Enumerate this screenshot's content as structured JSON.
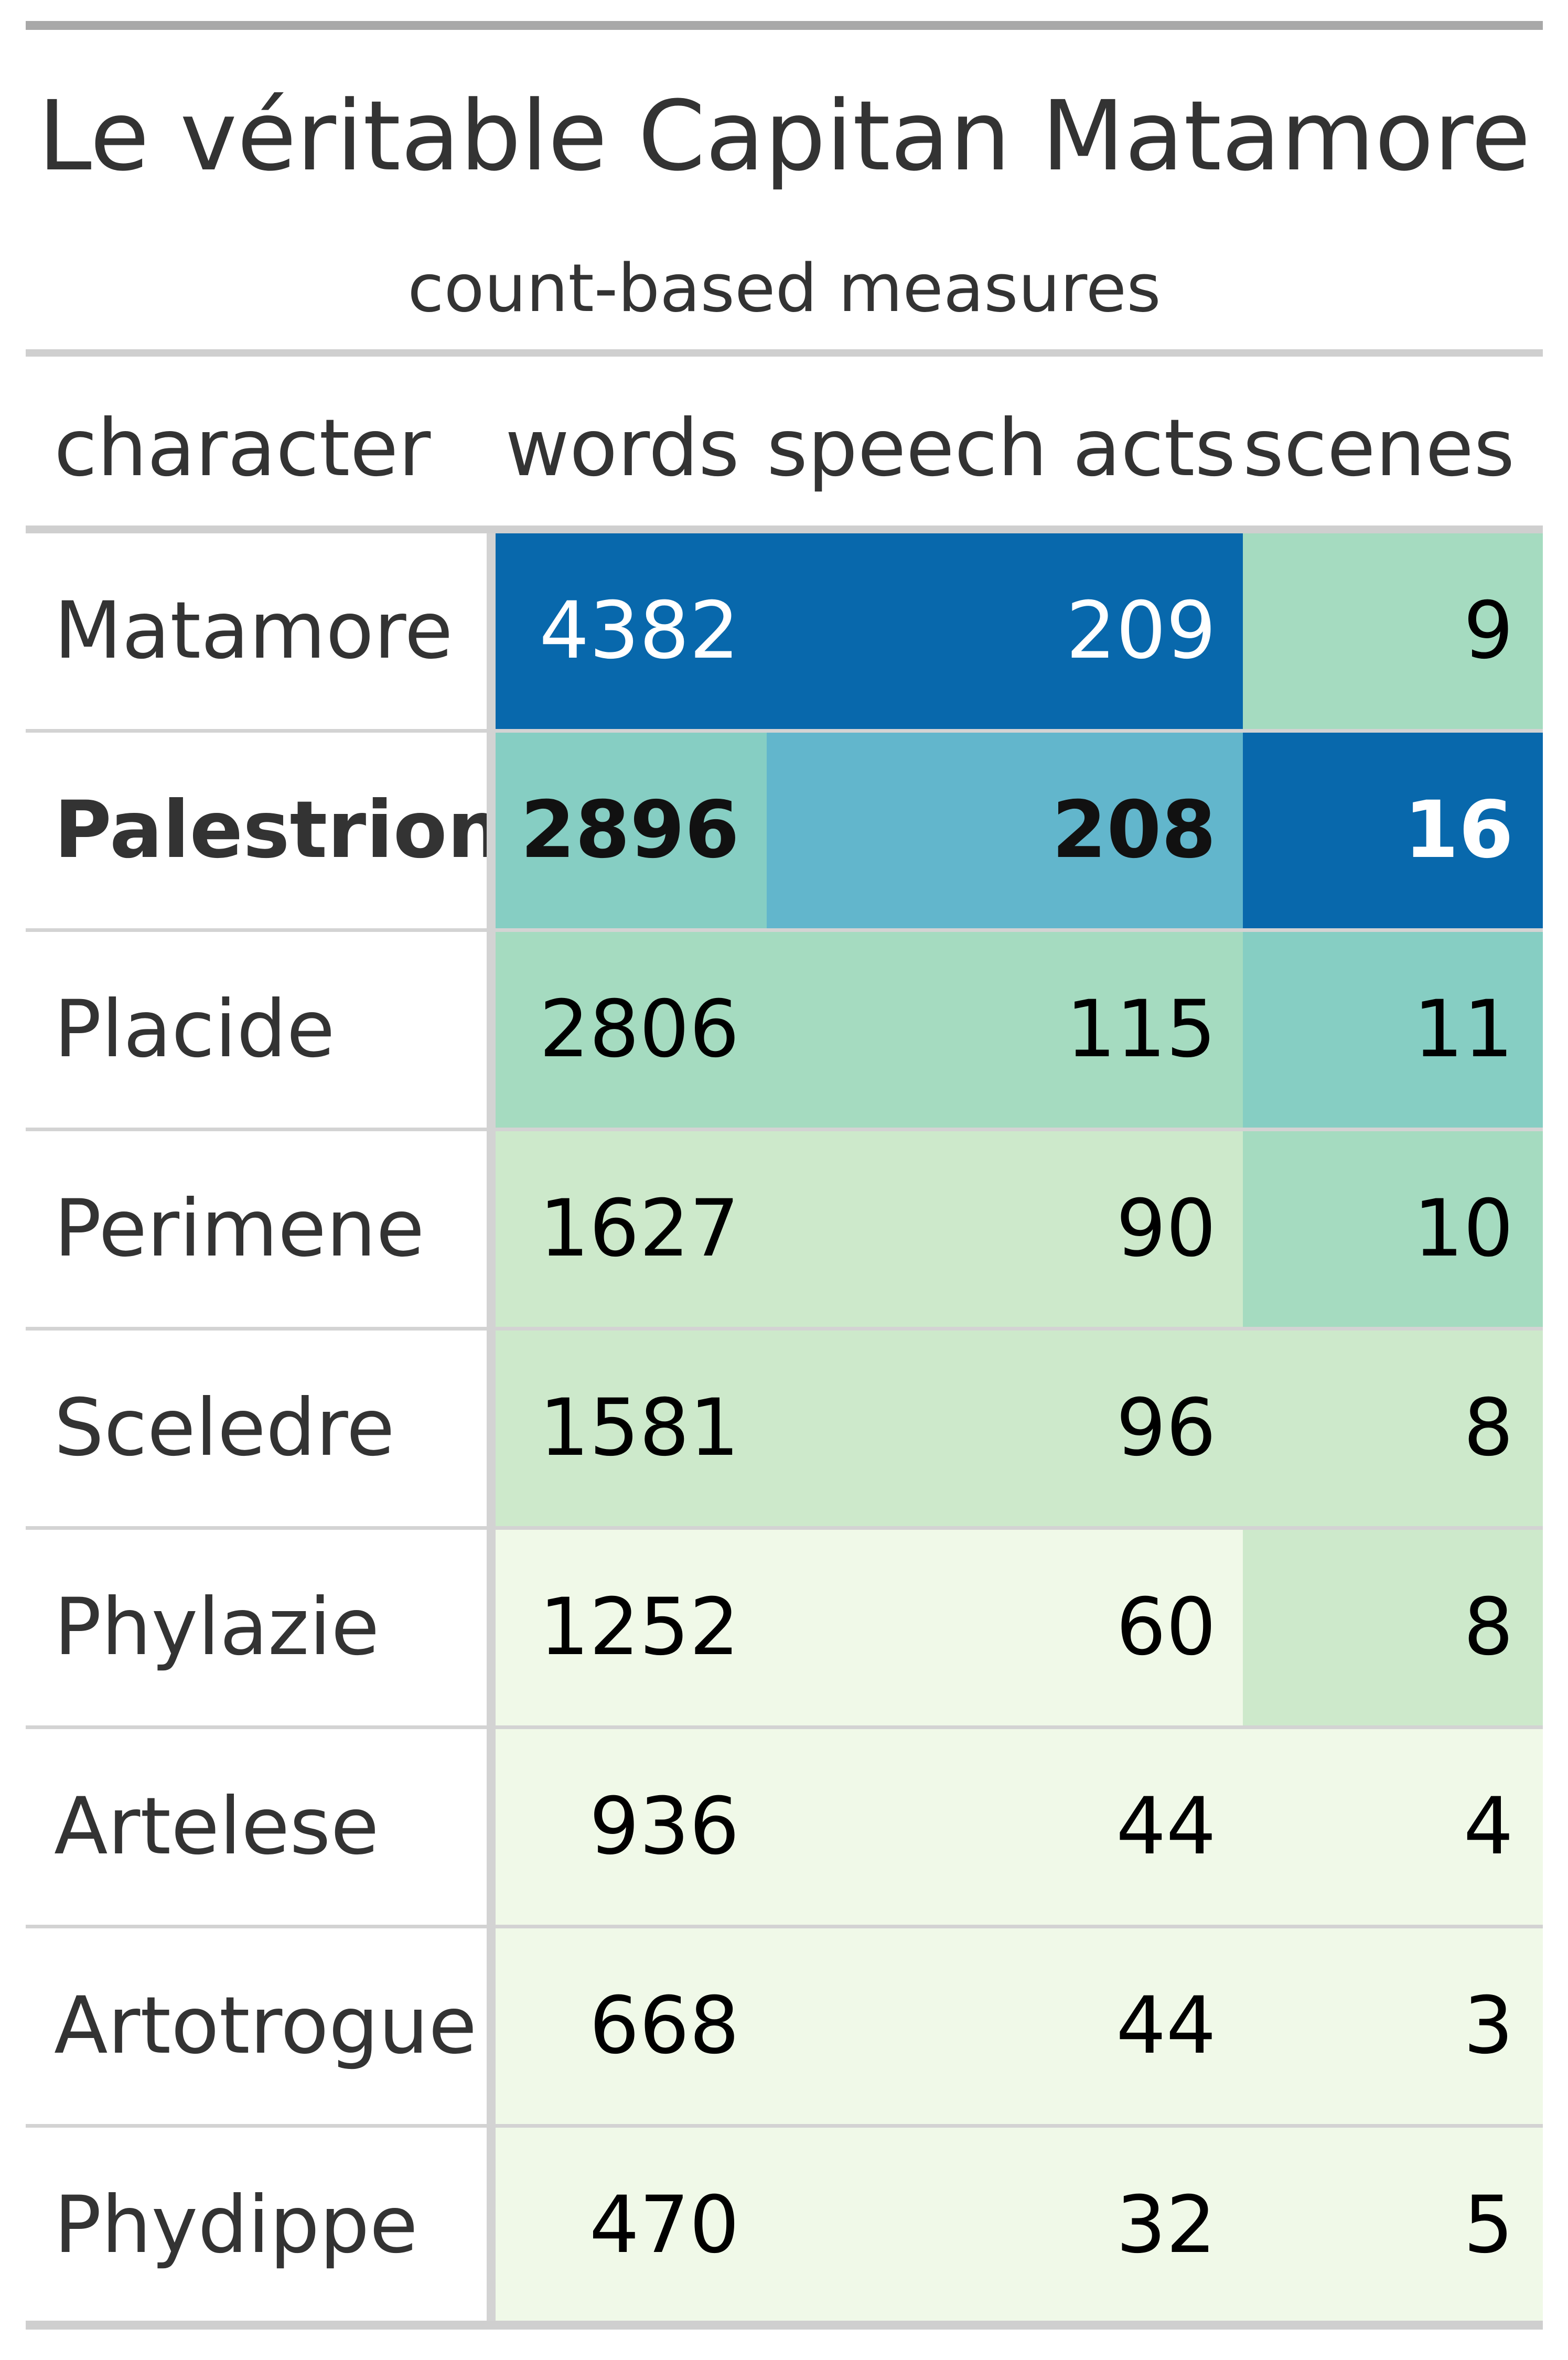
{
  "chart_data": {
    "type": "table",
    "title": "Le véritable Capitan Matamore",
    "subtitle": "count-based measures",
    "columns": [
      "character",
      "words",
      "speech acts",
      "scenes"
    ],
    "rows": [
      {
        "character": "Matamore",
        "words": 4382,
        "speech_acts": 209,
        "scenes": 9,
        "bold": false
      },
      {
        "character": "Palestrion",
        "words": 2896,
        "speech_acts": 208,
        "scenes": 16,
        "bold": true
      },
      {
        "character": "Placide",
        "words": 2806,
        "speech_acts": 115,
        "scenes": 11,
        "bold": false
      },
      {
        "character": "Perimene",
        "words": 1627,
        "speech_acts": 90,
        "scenes": 10,
        "bold": false
      },
      {
        "character": "Sceledre",
        "words": 1581,
        "speech_acts": 96,
        "scenes": 8,
        "bold": false
      },
      {
        "character": "Phylazie",
        "words": 1252,
        "speech_acts": 60,
        "scenes": 8,
        "bold": false
      },
      {
        "character": "Artelese",
        "words": 936,
        "speech_acts": 44,
        "scenes": 4,
        "bold": false
      },
      {
        "character": "Artotrogue",
        "words": 668,
        "speech_acts": 44,
        "scenes": 3,
        "bold": false
      },
      {
        "character": "Phydippe",
        "words": 470,
        "speech_acts": 32,
        "scenes": 5,
        "bold": false
      }
    ],
    "color_scale": [
      "#f0f9e8",
      "#cde9cb",
      "#a5dbc0",
      "#86cec3",
      "#62b6cc",
      "#0868ac"
    ],
    "dark_text_color": "#000000",
    "light_text_color": "#ffffff"
  }
}
